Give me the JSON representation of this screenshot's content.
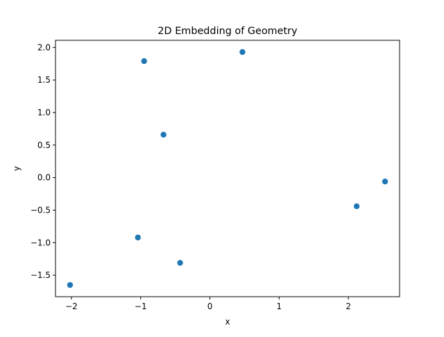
{
  "chart_data": {
    "type": "scatter",
    "title": "2D Embedding of Geometry",
    "xlabel": "x",
    "ylabel": "y",
    "xlim": [
      -2.23,
      2.74
    ],
    "ylim": [
      -1.83,
      2.11
    ],
    "xticks": [
      -2,
      -1,
      0,
      1,
      2
    ],
    "xtick_labels": [
      "−2",
      "−1",
      "0",
      "1",
      "2"
    ],
    "yticks": [
      -1.5,
      -1.0,
      -0.5,
      0.0,
      0.5,
      1.0,
      1.5,
      2.0
    ],
    "ytick_labels": [
      "−1.5",
      "−1.0",
      "−0.5",
      "0.0",
      "0.5",
      "1.0",
      "1.5",
      "2.0"
    ],
    "grid": false,
    "marker_color": "#1f77b4",
    "points": [
      {
        "x": -2.02,
        "y": -1.65
      },
      {
        "x": -1.04,
        "y": -0.92
      },
      {
        "x": -0.43,
        "y": -1.31
      },
      {
        "x": -0.67,
        "y": 0.66
      },
      {
        "x": -0.95,
        "y": 1.79
      },
      {
        "x": 0.47,
        "y": 1.93
      },
      {
        "x": 2.12,
        "y": -0.44
      },
      {
        "x": 2.53,
        "y": -0.06
      }
    ]
  }
}
